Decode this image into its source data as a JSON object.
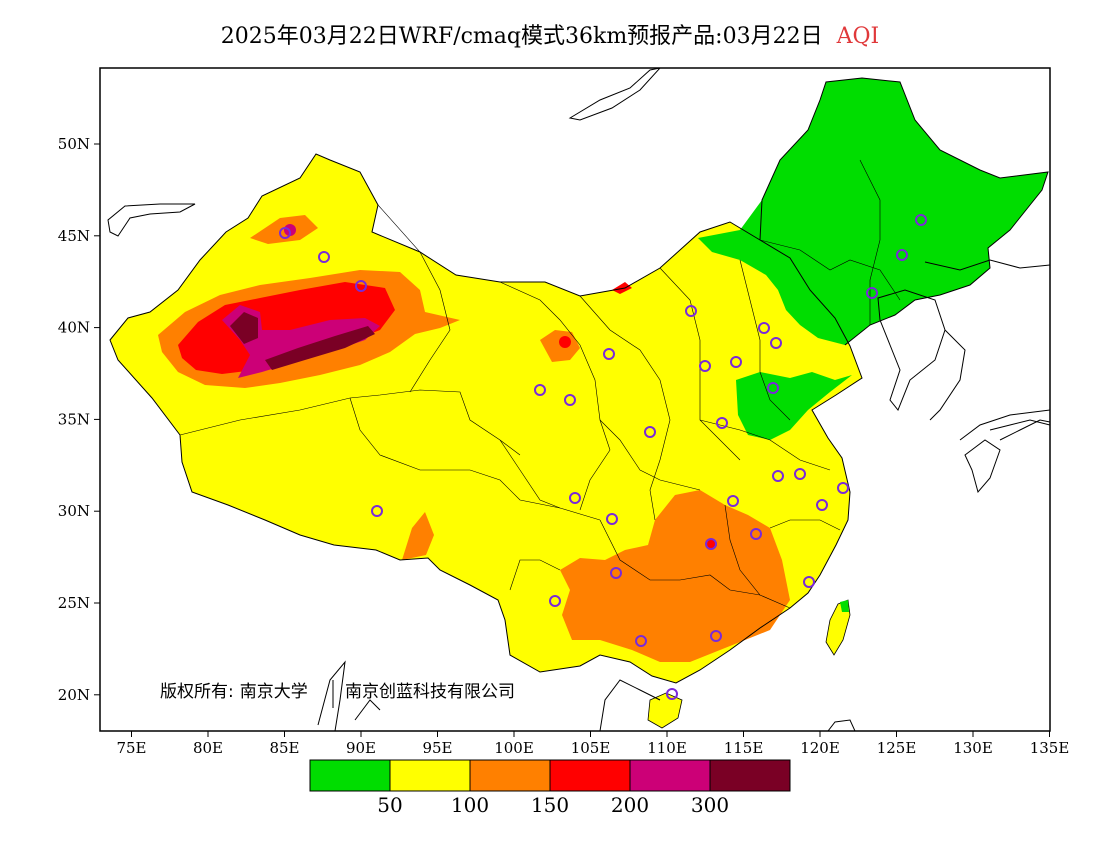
{
  "title": {
    "main": "2025年03月22日WRF/cmaq模式36km预报产品:03月22日",
    "variable": "AQI"
  },
  "axes": {
    "lat_labels": [
      "50N",
      "45N",
      "40N",
      "35N",
      "30N",
      "25N",
      "20N"
    ],
    "lon_labels": [
      "75E",
      "80E",
      "85E",
      "90E",
      "95E",
      "100E",
      "105E",
      "110E",
      "115E",
      "120E",
      "125E",
      "130E",
      "135E"
    ]
  },
  "copyright": {
    "prefix": "版权所有:",
    "org1": "南京大学",
    "org2": "南京创蓝科技有限公司"
  },
  "colorbar": {
    "colors": [
      "#00dd00",
      "#ffff00",
      "#ff8000",
      "#ff0000",
      "#cc0077",
      "#7a0025"
    ],
    "labels": [
      "50",
      "100",
      "150",
      "200",
      "300"
    ]
  },
  "colors": {
    "boundary": "#000000",
    "station_marker": "#7a2ad8",
    "title_accent": "#e0383a"
  }
}
